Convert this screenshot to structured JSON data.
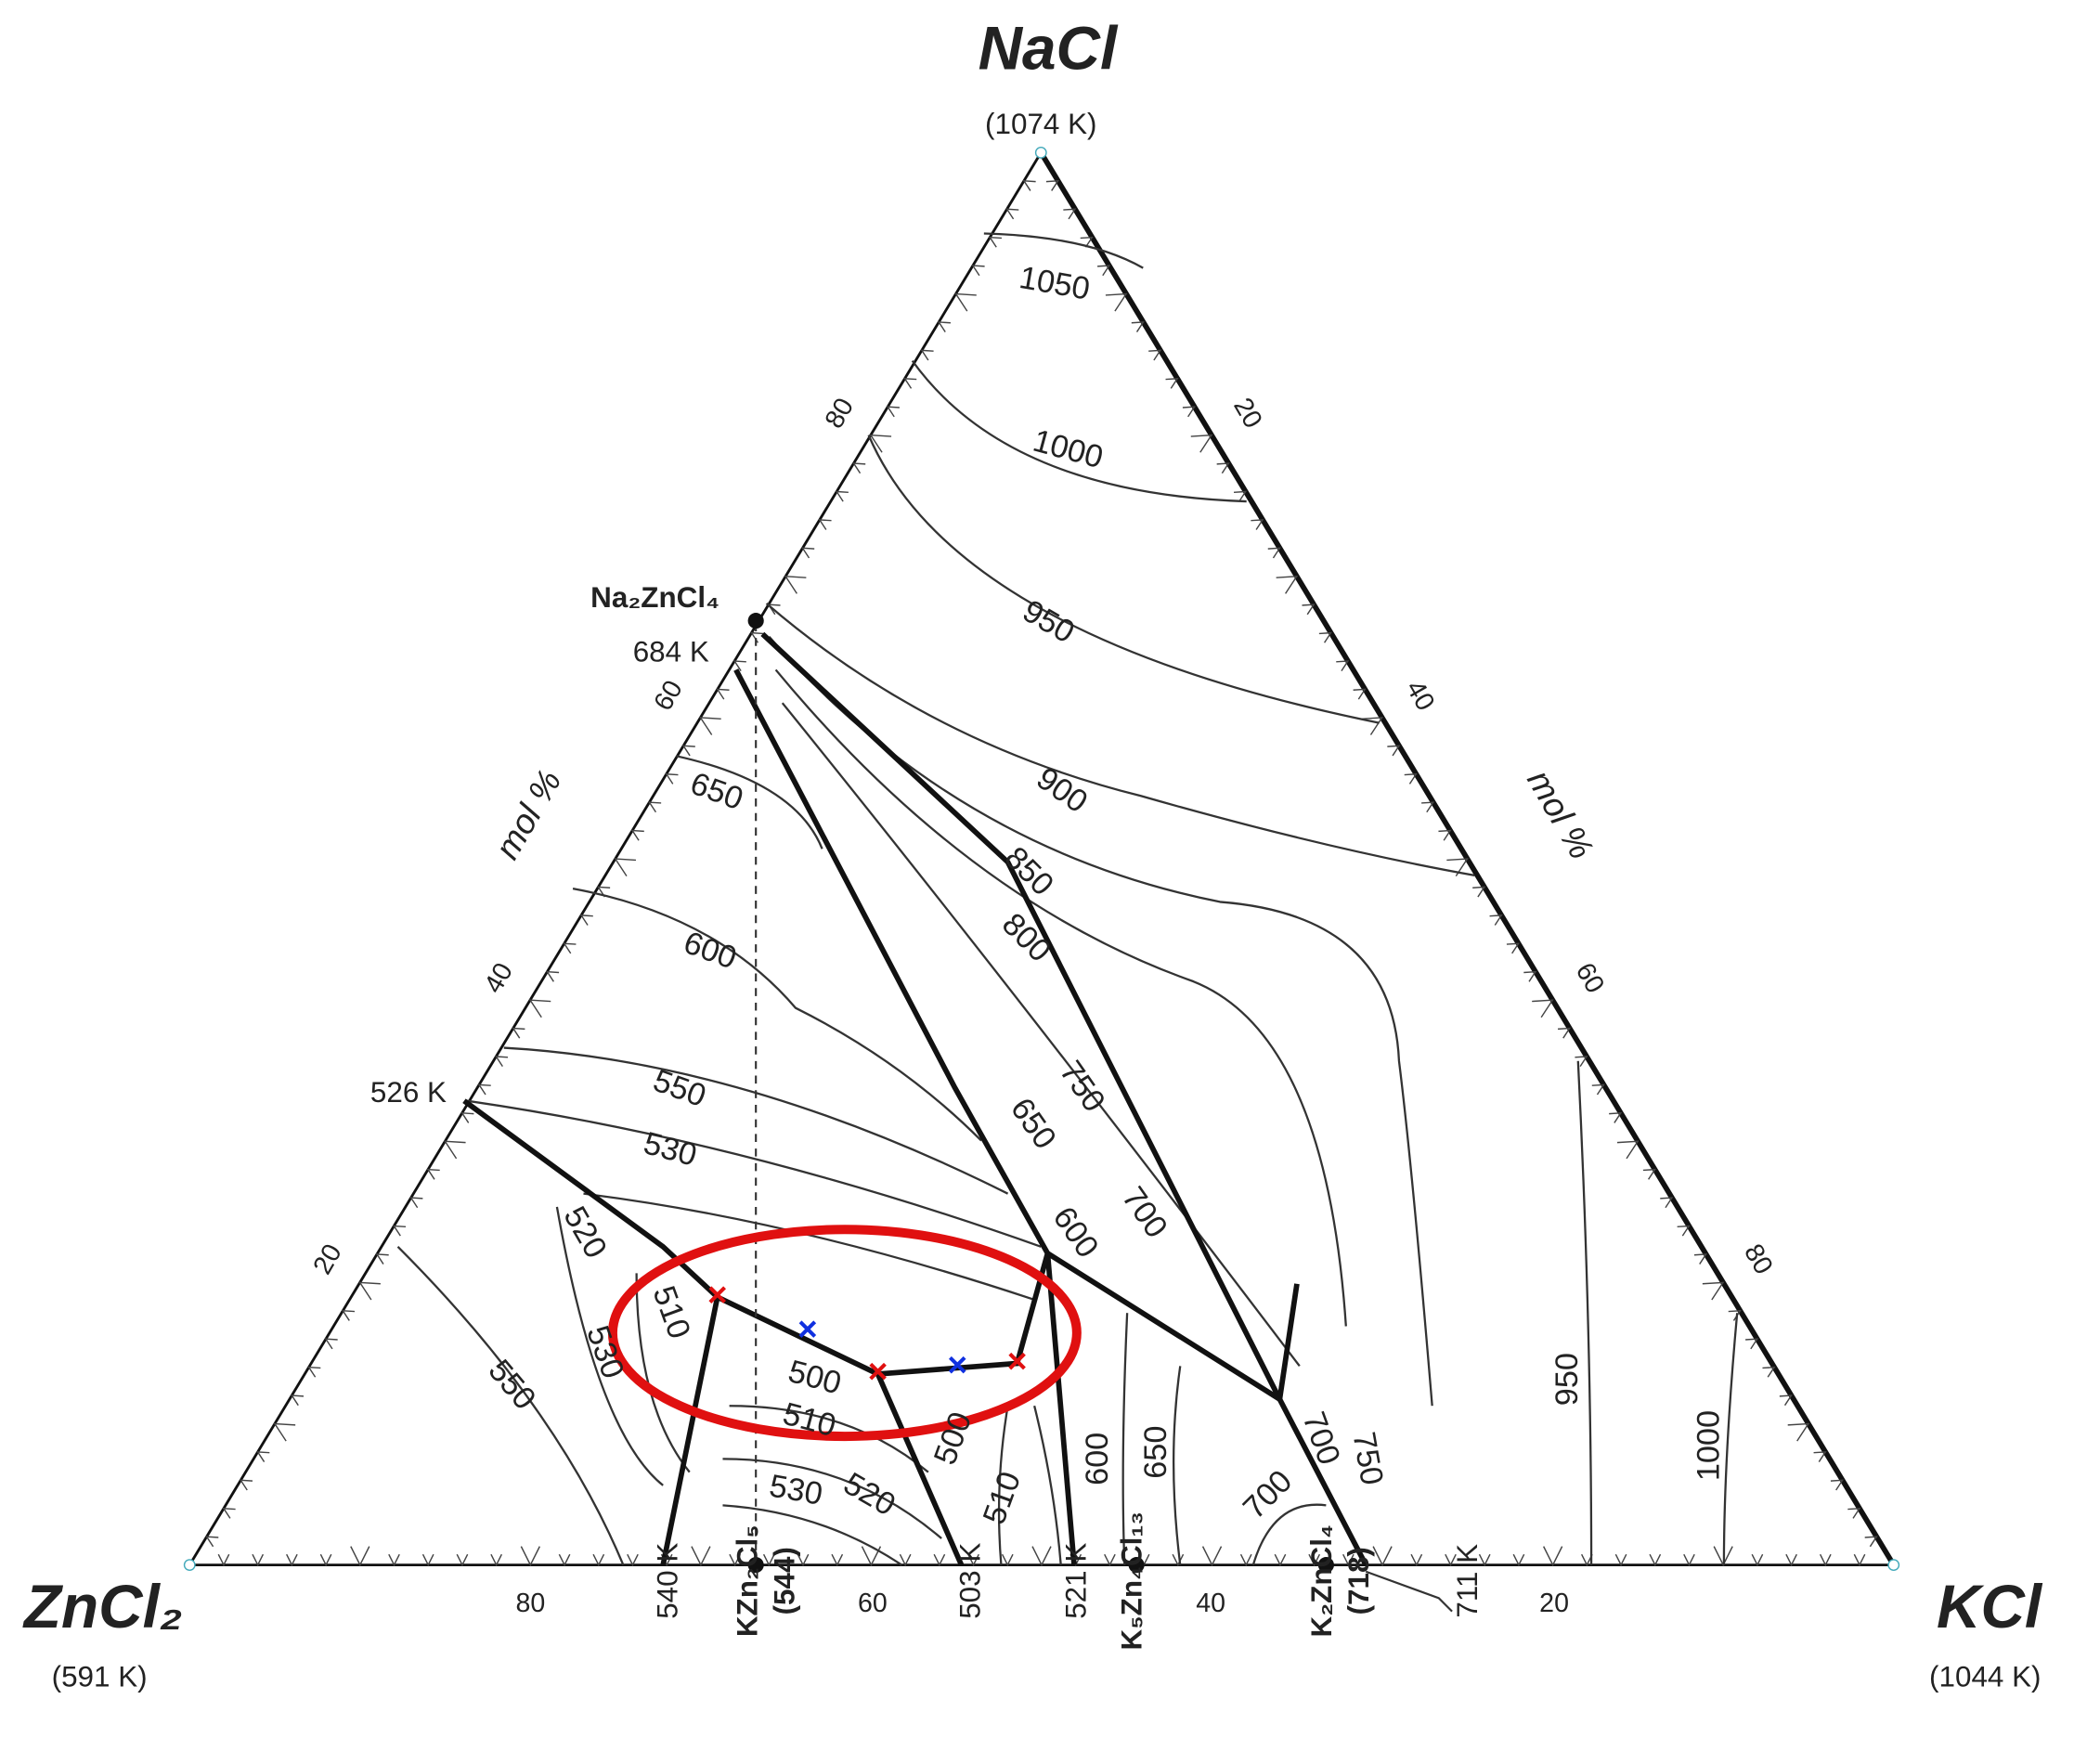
{
  "vertices": {
    "top": {
      "label": "NaCl",
      "temp": "(1074 K)"
    },
    "left": {
      "label": "ZnCl₂",
      "temp": "(591 K)"
    },
    "right": {
      "label": "KCl",
      "temp": "(1044 K)"
    }
  },
  "axis_ticks": {
    "left": [
      "80",
      "60",
      "40",
      "20"
    ],
    "right": [
      "20",
      "40",
      "60",
      "80"
    ],
    "bottom": [
      "80",
      "60",
      "40",
      "20"
    ]
  },
  "axis_labels": [
    "mol %",
    "mol %"
  ],
  "point_labels": [
    "Na₂ZnCl₄",
    "684 K",
    "526 K"
  ],
  "bottom_labels": [
    "540 K",
    "KZn₂Cl₅",
    "(544)",
    "503 K",
    "521 K",
    "K₅Zn₄Cl₁₃",
    "K₂ZnCl₄",
    "(718)",
    "711 K"
  ],
  "isotherm_labels": [
    "1050",
    "1000",
    "950",
    "900",
    "850",
    "800",
    "750",
    "700",
    "650",
    "600",
    "650",
    "600",
    "550",
    "530",
    "520",
    "510",
    "530",
    "500",
    "510",
    "520",
    "530",
    "500",
    "510",
    "550",
    "600",
    "650",
    "700",
    "700",
    "750",
    "950",
    "1000"
  ]
}
